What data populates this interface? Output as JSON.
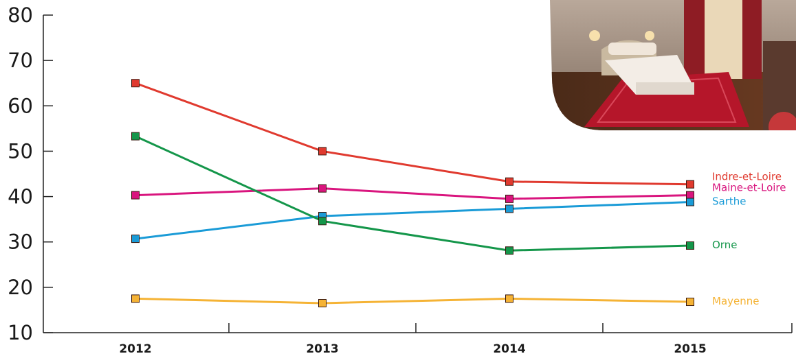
{
  "chart_data": {
    "type": "line",
    "x": [
      "2012",
      "2013",
      "2014",
      "2015"
    ],
    "ylim": [
      10,
      80
    ],
    "yticks": [
      10,
      20,
      30,
      40,
      50,
      60,
      70,
      80
    ],
    "grid": false,
    "legend": "end-of-line labels",
    "series": [
      {
        "name": "Indre-et-Loire",
        "color": "#e03a2f",
        "values": [
          65,
          50,
          43.3,
          42.7
        ]
      },
      {
        "name": "Maine-et-Loire",
        "color": "#d9157e",
        "values": [
          40.3,
          41.8,
          39.5,
          40.3
        ]
      },
      {
        "name": "Sarthe",
        "color": "#1a9bd7",
        "values": [
          30.7,
          35.7,
          37.3,
          38.8
        ]
      },
      {
        "name": "Orne",
        "color": "#14964a",
        "values": [
          53.3,
          34.6,
          28.1,
          29.2
        ]
      },
      {
        "name": "Mayenne",
        "color": "#f5b335",
        "values": [
          17.5,
          16.5,
          17.5,
          16.8
        ]
      }
    ]
  },
  "photo": {
    "icon": "hotel-bedroom-photo"
  }
}
